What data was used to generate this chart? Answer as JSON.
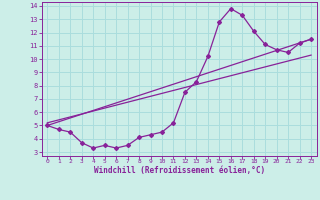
{
  "xlabel": "Windchill (Refroidissement éolien,°C)",
  "bg_color": "#cceee8",
  "grid_color": "#aadddd",
  "line_color": "#882299",
  "xlim": [
    -0.5,
    23.5
  ],
  "ylim": [
    2.7,
    14.3
  ],
  "yticks": [
    3,
    4,
    5,
    6,
    7,
    8,
    9,
    10,
    11,
    12,
    13,
    14
  ],
  "xticks": [
    0,
    1,
    2,
    3,
    4,
    5,
    6,
    7,
    8,
    9,
    10,
    11,
    12,
    13,
    14,
    15,
    16,
    17,
    18,
    19,
    20,
    21,
    22,
    23
  ],
  "line1_x": [
    0,
    1,
    2,
    3,
    4,
    5,
    6,
    7,
    8,
    9,
    10,
    11,
    12,
    13,
    14,
    15,
    16,
    17,
    18,
    19,
    20,
    21,
    22,
    23
  ],
  "line1_y": [
    5.0,
    4.7,
    4.5,
    3.7,
    3.3,
    3.5,
    3.3,
    3.5,
    4.1,
    4.3,
    4.5,
    5.2,
    7.5,
    8.3,
    10.2,
    12.8,
    13.8,
    13.3,
    12.1,
    11.1,
    10.7,
    10.5,
    11.2,
    11.5
  ],
  "line2_x": [
    0,
    23
  ],
  "line2_y": [
    5.0,
    11.5
  ],
  "line3_x": [
    0,
    23
  ],
  "line3_y": [
    5.2,
    10.3
  ]
}
